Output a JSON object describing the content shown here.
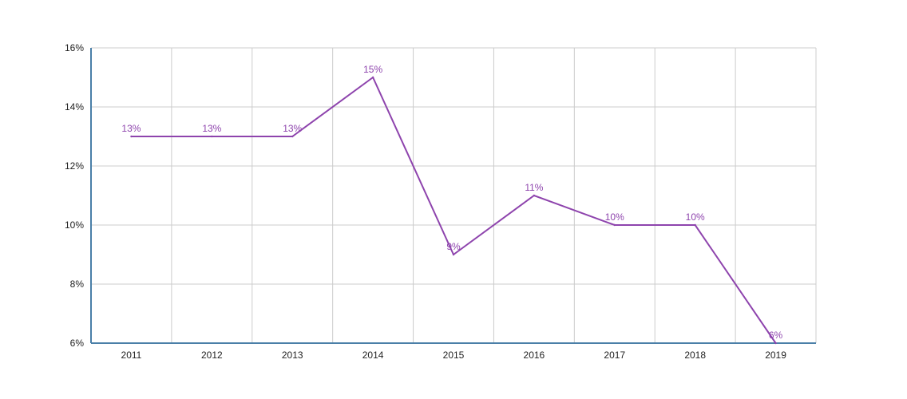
{
  "chart_data": {
    "type": "line",
    "title": "",
    "xlabel": "",
    "ylabel": "",
    "categories": [
      "2011",
      "2012",
      "2013",
      "2014",
      "2015",
      "2016",
      "2017",
      "2018",
      "2019"
    ],
    "series": [
      {
        "values": [
          13,
          13,
          13,
          15,
          9,
          11,
          10,
          10,
          6
        ],
        "labels": [
          "13%",
          "13%",
          "13%",
          "15%",
          "9%",
          "11%",
          "10%",
          "10%",
          "6%"
        ],
        "color": "#8e44ad"
      }
    ],
    "ylim": [
      6,
      16
    ],
    "yticks": [
      6,
      8,
      10,
      12,
      14,
      16
    ],
    "ytick_labels": [
      "6%",
      "8%",
      "10%",
      "12%",
      "14%",
      "16%"
    ],
    "grid": true,
    "legend": "none",
    "axis_color": "#4a7fa8",
    "grid_color": "#cccccc"
  }
}
